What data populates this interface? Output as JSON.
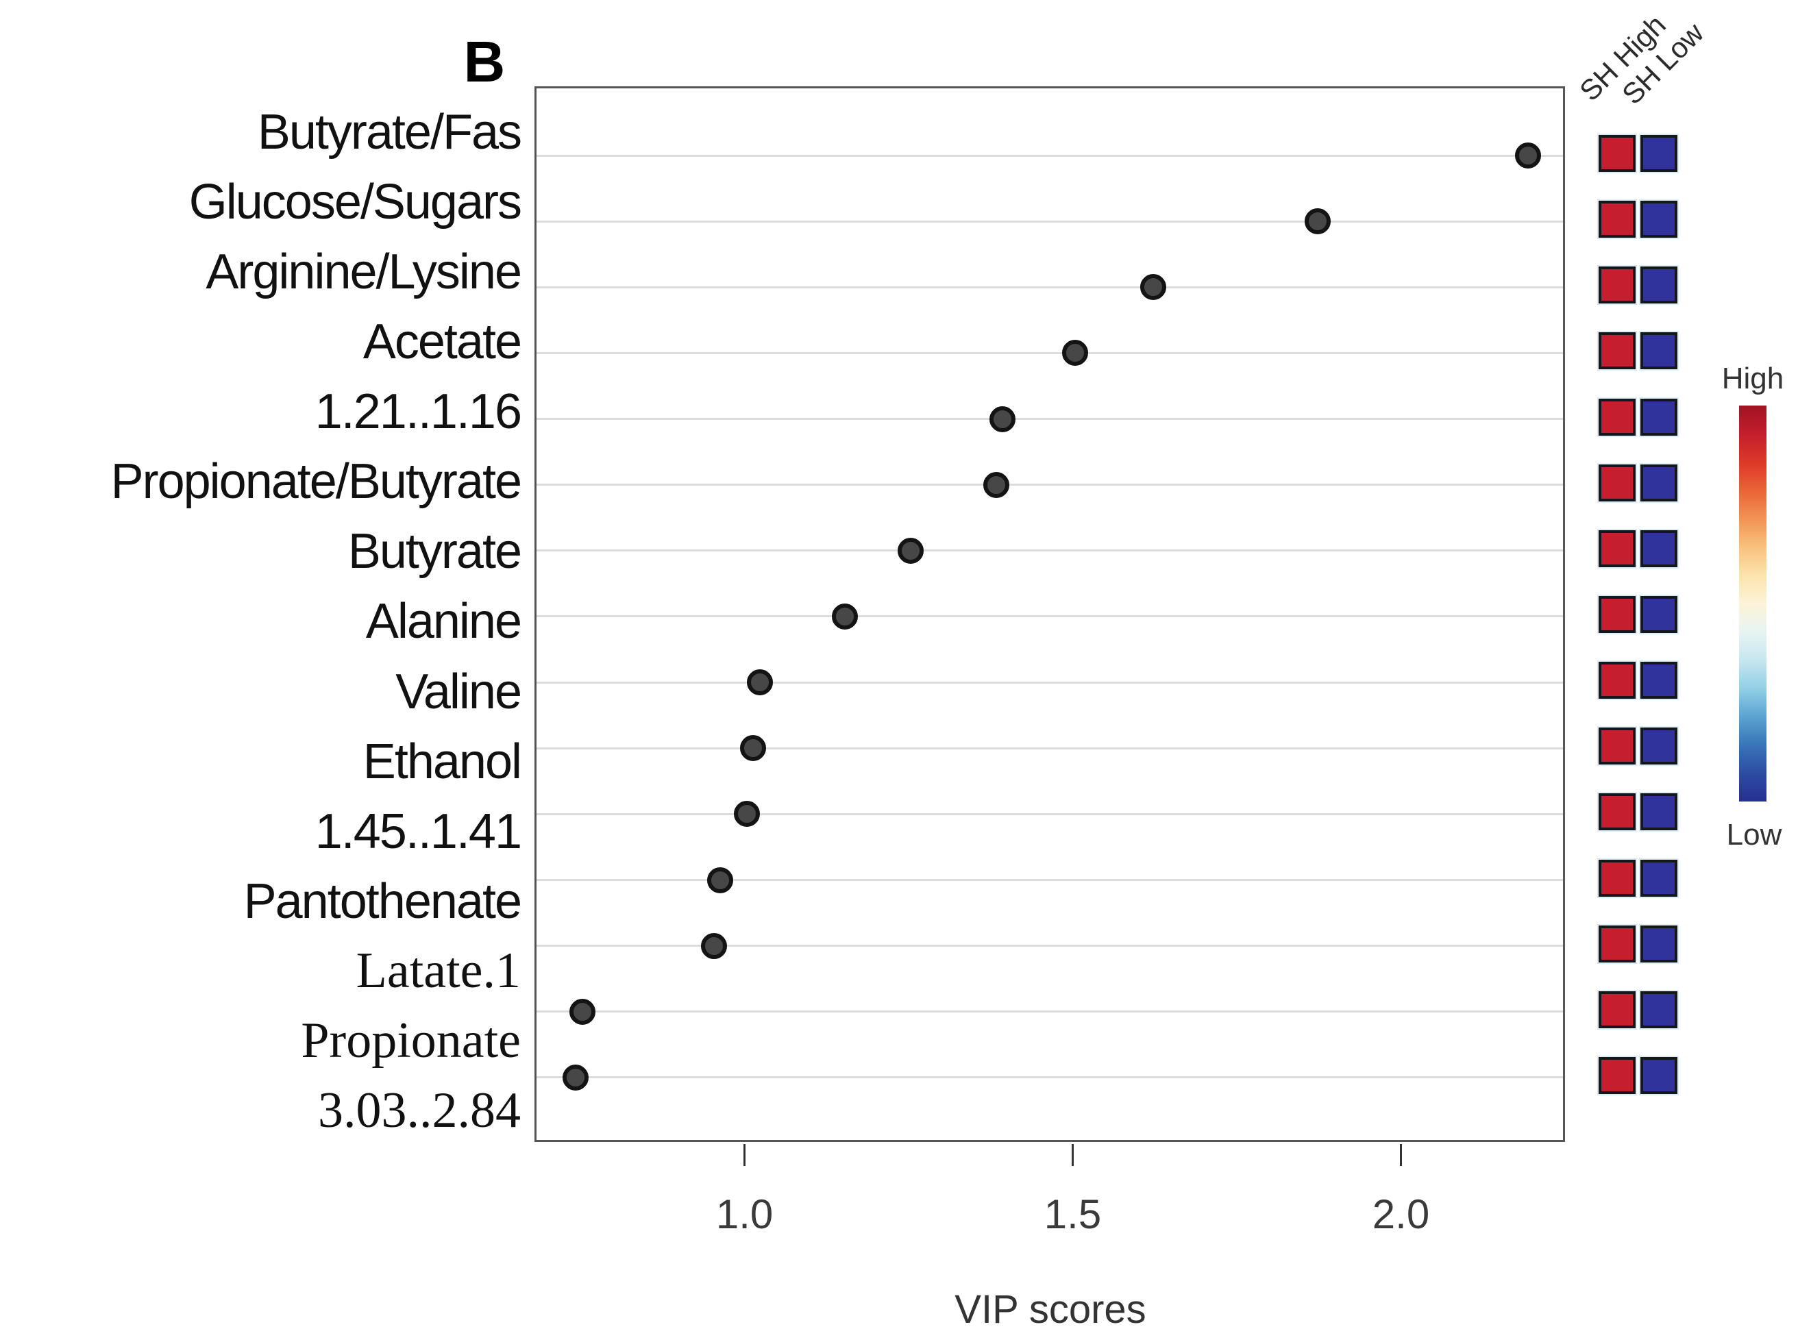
{
  "panel_label": "B",
  "chart_data": {
    "type": "scatter",
    "title": "",
    "xlabel": "VIP scores",
    "ylabel": "",
    "xlim": [
      0.68,
      2.25
    ],
    "grid": true,
    "x_ticks": [
      {
        "value": 1.0,
        "label": "1.0"
      },
      {
        "value": 1.5,
        "label": "1.5"
      },
      {
        "value": 2.0,
        "label": "2.0"
      }
    ],
    "items": [
      {
        "label": "Butyrate/Fas",
        "vip": 2.19,
        "sh_high": "high",
        "sh_low": "low",
        "serif": false
      },
      {
        "label": "Glucose/Sugars",
        "vip": 1.87,
        "sh_high": "high",
        "sh_low": "low",
        "serif": false
      },
      {
        "label": "Arginine/Lysine",
        "vip": 1.62,
        "sh_high": "high",
        "sh_low": "low",
        "serif": false
      },
      {
        "label": "Acetate",
        "vip": 1.5,
        "sh_high": "high",
        "sh_low": "low",
        "serif": false
      },
      {
        "label": "1.21..1.16",
        "vip": 1.39,
        "sh_high": "high",
        "sh_low": "low",
        "serif": false
      },
      {
        "label": "Propionate/Butyrate",
        "vip": 1.38,
        "sh_high": "high",
        "sh_low": "low",
        "serif": false
      },
      {
        "label": "Butyrate",
        "vip": 1.25,
        "sh_high": "high",
        "sh_low": "low",
        "serif": false
      },
      {
        "label": "Alanine",
        "vip": 1.15,
        "sh_high": "high",
        "sh_low": "low",
        "serif": false
      },
      {
        "label": "Valine",
        "vip": 1.02,
        "sh_high": "high",
        "sh_low": "low",
        "serif": false
      },
      {
        "label": "Ethanol",
        "vip": 1.01,
        "sh_high": "high",
        "sh_low": "low",
        "serif": false
      },
      {
        "label": "1.45..1.41",
        "vip": 1.0,
        "sh_high": "high",
        "sh_low": "low",
        "serif": false
      },
      {
        "label": "Pantothenate",
        "vip": 0.96,
        "sh_high": "high",
        "sh_low": "low",
        "serif": false
      },
      {
        "label": "Latate.1",
        "vip": 0.95,
        "sh_high": "high",
        "sh_low": "low",
        "serif": true
      },
      {
        "label": "Propionate",
        "vip": 0.75,
        "sh_high": "high",
        "sh_low": "low",
        "serif": true
      },
      {
        "label": "3.03..2.84",
        "vip": 0.74,
        "sh_high": "high",
        "sh_low": "low",
        "serif": true
      }
    ],
    "group_columns": [
      "SH High",
      "SH Low"
    ],
    "legend": {
      "high_label": "High",
      "low_label": "Low",
      "position": "right"
    }
  },
  "colors": {
    "cell_high": "#c41e2f",
    "cell_low": "#2f339b",
    "dot_fill": "#474747",
    "dot_edge": "#141414",
    "grid_line": "#dcdcdc",
    "colorbar_stops": [
      "#a01325",
      "#c41e2c",
      "#dd3829",
      "#ea6337",
      "#f29355",
      "#f8c17c",
      "#fce3ae",
      "#fdf3d8",
      "#e8f4f2",
      "#c6e7f0",
      "#93cfe6",
      "#5ba4d0",
      "#3874b8",
      "#2c4da3",
      "#282f8f"
    ]
  }
}
